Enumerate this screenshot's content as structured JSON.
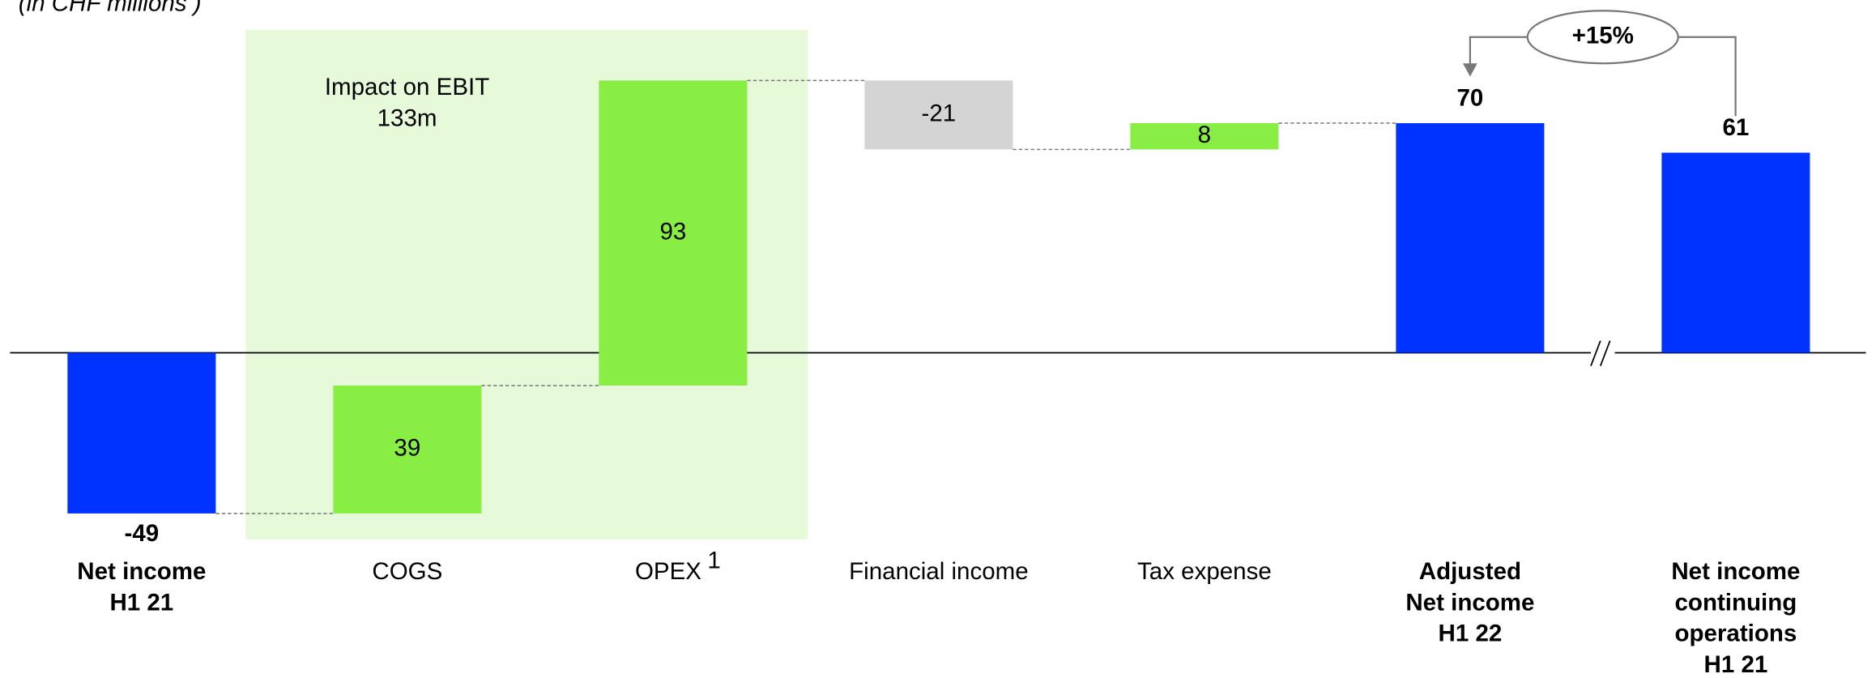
{
  "chart_data": {
    "type": "waterfall",
    "title": "(in CHF millions )",
    "categories": [
      [
        "Net income",
        "H1 21"
      ],
      [
        "COGS"
      ],
      [
        "OPEX"
      ],
      [
        "Financial income"
      ],
      [
        "Tax expense"
      ],
      [
        "Adjusted",
        "Net income",
        "H1 22"
      ],
      [
        "Net income",
        "continuing",
        "operations",
        "H1 21"
      ]
    ],
    "category_superscripts": [
      null,
      null,
      "1",
      null,
      null,
      null,
      null
    ],
    "measure": [
      "absolute",
      "relative",
      "relative",
      "relative",
      "relative",
      "total",
      "absolute"
    ],
    "values": [
      -49,
      39,
      93,
      -21,
      8,
      70,
      61
    ],
    "colors": {
      "total": "#0033ff",
      "increase": "#88ee44",
      "decrease": "#d4d4d4"
    },
    "annotations": {
      "ebit": [
        "Impact on EBIT",
        "133m"
      ],
      "change": "+15%"
    }
  }
}
